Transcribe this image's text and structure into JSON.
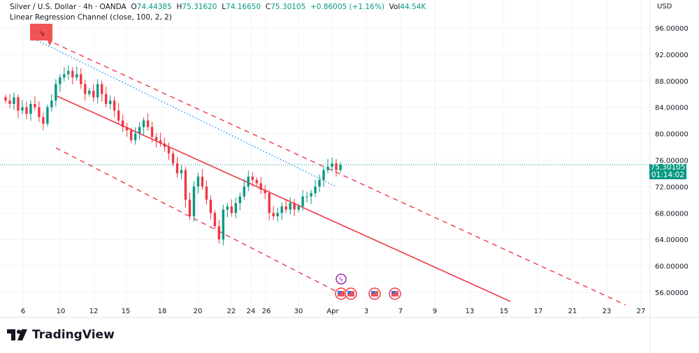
{
  "header": {
    "symbol": "Silver / U.S. Dollar · 4h · OANDA",
    "o_label": "O",
    "o": "74.44385",
    "h_label": "H",
    "h": "75.31620",
    "l_label": "L",
    "l": "74.16650",
    "c_label": "C",
    "c": "75.30105",
    "change": "+0.86005 (+1.16%)",
    "vol_label": "Vol",
    "vol": "44.54K",
    "indicator": "Linear Regression Channel (close, 100, 2, 2)"
  },
  "axis": {
    "currency": "USD"
  },
  "price_tag": {
    "price": "75.30105",
    "countdown": "01:14:02"
  },
  "brand": {
    "name": "TradingView"
  },
  "colors": {
    "up": "#089981",
    "down": "#f23645",
    "channel": "#f23645",
    "dotted": "#2196f3",
    "event": "#9c27b0"
  },
  "chart_data": {
    "type": "candlestick",
    "ylim": [
      54,
      98
    ],
    "y_ticks": [
      "96.00000",
      "92.00000",
      "88.00000",
      "84.00000",
      "80.00000",
      "76.00000",
      "72.00000",
      "68.00000",
      "64.00000",
      "60.00000",
      "56.00000"
    ],
    "x_ticks": [
      "6",
      "10",
      "12",
      "15",
      "18",
      "20",
      "22",
      "24",
      "26",
      "30",
      "Apr",
      "3",
      "7",
      "9",
      "13",
      "15",
      "17",
      "21",
      "23",
      "27"
    ],
    "closes": [
      85,
      84.5,
      85.5,
      83.5,
      84,
      83,
      84.5,
      84,
      82.5,
      81.5,
      84,
      85,
      87.5,
      88.5,
      89,
      89.5,
      88.5,
      89,
      87.5,
      86,
      86.5,
      85.5,
      87.5,
      86,
      84.5,
      85,
      83.5,
      82,
      81,
      80.5,
      79,
      80,
      81,
      82,
      81,
      79.5,
      79,
      78.5,
      78,
      77,
      75.5,
      74,
      74.5,
      70,
      67.5,
      72,
      73.5,
      72,
      70,
      68,
      66,
      64,
      68.5,
      69,
      68,
      69.5,
      70.5,
      72,
      73.5,
      73,
      72.5,
      71.5,
      71,
      68,
      67.5,
      68,
      69,
      68.5,
      69.5,
      68.5,
      69,
      70.5,
      70.5,
      71,
      72,
      73,
      74.5,
      75,
      75.5,
      74.5,
      75.30105
    ],
    "last_price": 75.30105,
    "grid": true
  }
}
